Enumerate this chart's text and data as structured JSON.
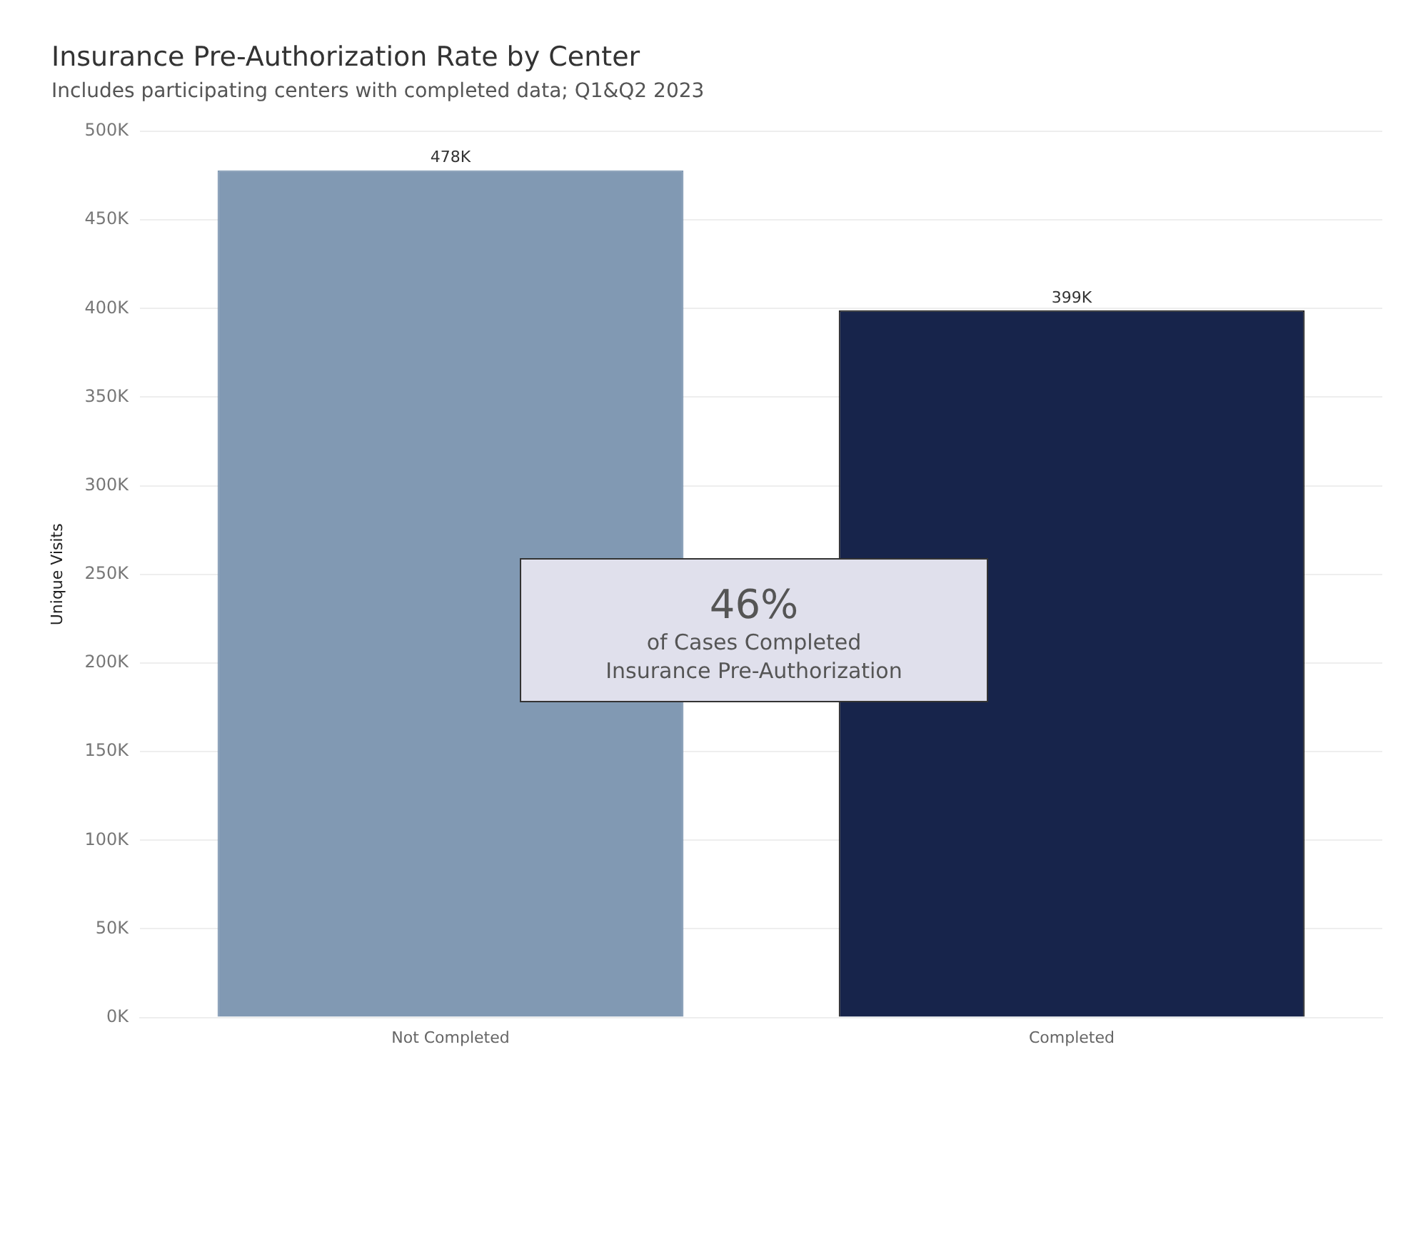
{
  "chart_data": {
    "type": "bar",
    "title": "Insurance Pre-Authorization Rate by Center",
    "subtitle": "Includes participating centers with completed data; Q1&Q2 2023",
    "ylabel": "Unique Visits",
    "categories": [
      "Not Completed",
      "Completed"
    ],
    "values": [
      478000,
      399000
    ],
    "colors": [
      "#8199b3",
      "#17244b"
    ],
    "value_labels": [
      "478K",
      "399K"
    ],
    "ylim": [
      0,
      500000
    ],
    "yticks": [
      {
        "value": 0,
        "label": "0K"
      },
      {
        "value": 50000,
        "label": "50K"
      },
      {
        "value": 100000,
        "label": "100K"
      },
      {
        "value": 150000,
        "label": "150K"
      },
      {
        "value": 200000,
        "label": "200K"
      },
      {
        "value": 250000,
        "label": "250K"
      },
      {
        "value": 300000,
        "label": "300K"
      },
      {
        "value": 350000,
        "label": "350K"
      },
      {
        "value": 400000,
        "label": "400K"
      },
      {
        "value": 450000,
        "label": "450K"
      },
      {
        "value": 500000,
        "label": "500K"
      }
    ],
    "annotations": [
      "46%",
      "of Cases Completed\nInsurance Pre-Authorization"
    ],
    "grid": "y",
    "legend": false
  }
}
